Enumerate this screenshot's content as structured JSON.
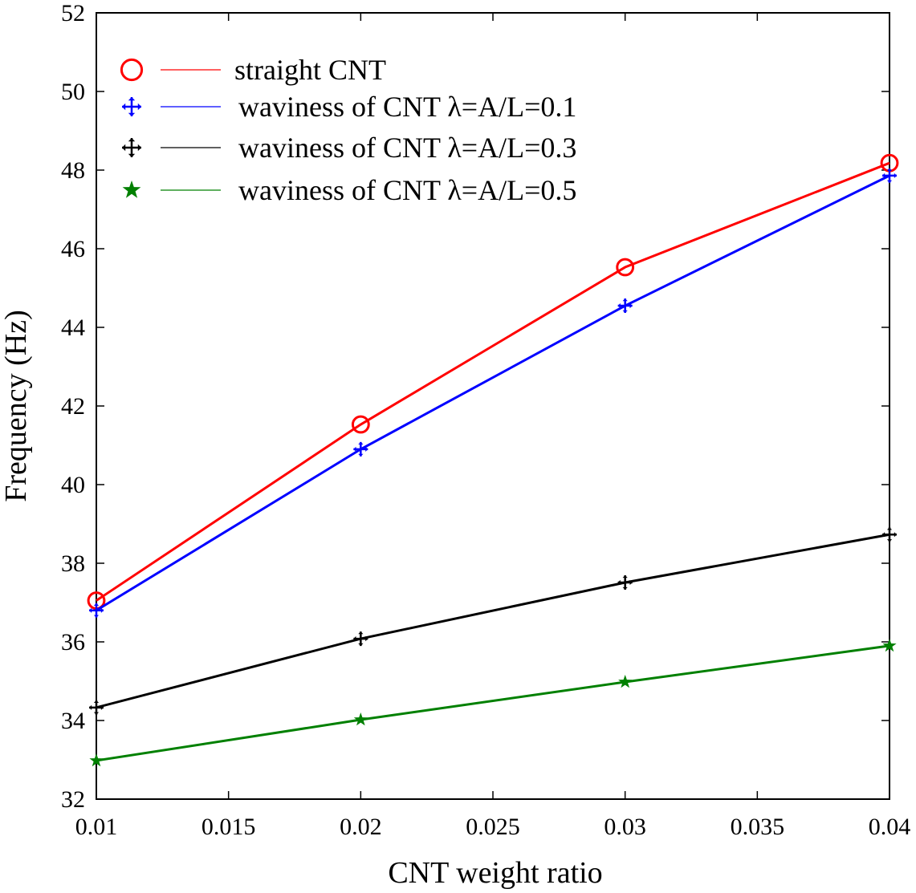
{
  "chart_data": {
    "type": "line",
    "xlabel": "CNT weight ratio",
    "ylabel": "Frequency (Hz)",
    "xlim": [
      0.01,
      0.04
    ],
    "ylim": [
      32,
      52
    ],
    "xticks": [
      "0.01",
      "0.015",
      "0.02",
      "0.025",
      "0.03",
      "0.035",
      "0.04"
    ],
    "yticks": [
      "32",
      "34",
      "36",
      "38",
      "40",
      "42",
      "44",
      "46",
      "48",
      "50",
      "52"
    ],
    "legend_position": "top-left",
    "x": [
      0.01,
      0.02,
      0.03,
      0.04
    ],
    "series": [
      {
        "name": "straight CNT",
        "color": "#ff0000",
        "marker": "circle",
        "values": [
          37.05,
          41.53,
          45.53,
          48.18
        ]
      },
      {
        "name": "waviness of CNT λ=A/L=0.1",
        "color": "#0000ff",
        "marker": "cross-arrows",
        "values": [
          36.8,
          40.9,
          44.55,
          47.86
        ]
      },
      {
        "name": "waviness of CNT λ=A/L=0.3",
        "color": "#000000",
        "marker": "cross-arrows",
        "values": [
          34.33,
          36.08,
          37.51,
          38.73
        ]
      },
      {
        "name": "waviness of CNT λ=A/L=0.5",
        "color": "#008000",
        "marker": "star",
        "values": [
          32.98,
          34.02,
          34.98,
          35.9
        ]
      }
    ]
  }
}
